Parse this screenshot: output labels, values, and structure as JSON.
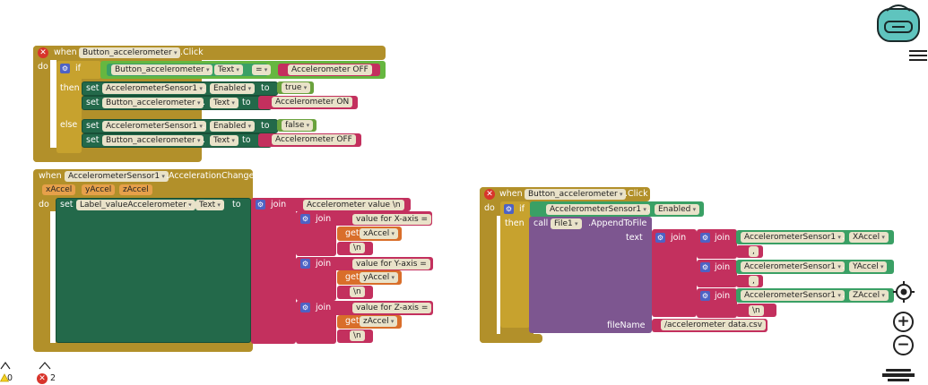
{
  "kw": {
    "when": "when",
    "do": "do",
    "if": "if",
    "then": "then",
    "else": "else",
    "set": "set",
    "to": "to",
    "get": "get",
    "join": "join",
    "call": "call",
    "text": "text",
    "fileName": "fileName",
    "eq": "=",
    "dot": "."
  },
  "b1": {
    "component": "Button_accelerometer",
    "event": ".Click",
    "cond_component": "Button_accelerometer",
    "cond_prop": "Text",
    "cond_value": "Accelerometer OFF",
    "then1_comp": "AccelerometerSensor1",
    "then1_prop": "Enabled",
    "then1_val": "true",
    "then2_comp": "Button_accelerometer",
    "then2_prop": "Text",
    "then2_val": "Accelerometer ON",
    "else1_comp": "AccelerometerSensor1",
    "else1_prop": "Enabled",
    "else1_val": "false",
    "else2_comp": "Button_accelerometer",
    "else2_prop": "Text",
    "else2_val": "Accelerometer OFF"
  },
  "b2": {
    "component": "AccelerometerSensor1",
    "event": ".AccelerationChanged",
    "params": [
      "xAccel",
      "yAccel",
      "zAccel"
    ],
    "set_comp": "Label_valueAccelerometer",
    "set_prop": "Text",
    "s0": "Accelerometer value \\n",
    "sx": "value for X-axis = ",
    "gx": "xAccel",
    "sy": "value for Y-axis = ",
    "gy": "yAccel",
    "sz": "value for Z-axis = ",
    "gz": "zAccel",
    "nl": "\\n"
  },
  "b3": {
    "component": "Button_accelerometer",
    "event": ".Click",
    "cond_comp": "AccelerometerSensor1",
    "cond_prop": "Enabled",
    "call_comp": "File1",
    "call_method": ".AppendToFile",
    "ax_comp": "AccelerometerSensor1",
    "ax_prop": "XAccel",
    "ay_comp": "AccelerometerSensor1",
    "ay_prop": "YAccel",
    "az_comp": "AccelerometerSensor1",
    "az_prop": "ZAccel",
    "comma": ",",
    "nl": "\\n",
    "filename": "/accelerometer data.csv"
  },
  "status": {
    "warnings": "0",
    "errors": "2"
  },
  "icons": {
    "warning": "warning-icon",
    "error": "error-icon",
    "backpack": "backpack-icon"
  }
}
